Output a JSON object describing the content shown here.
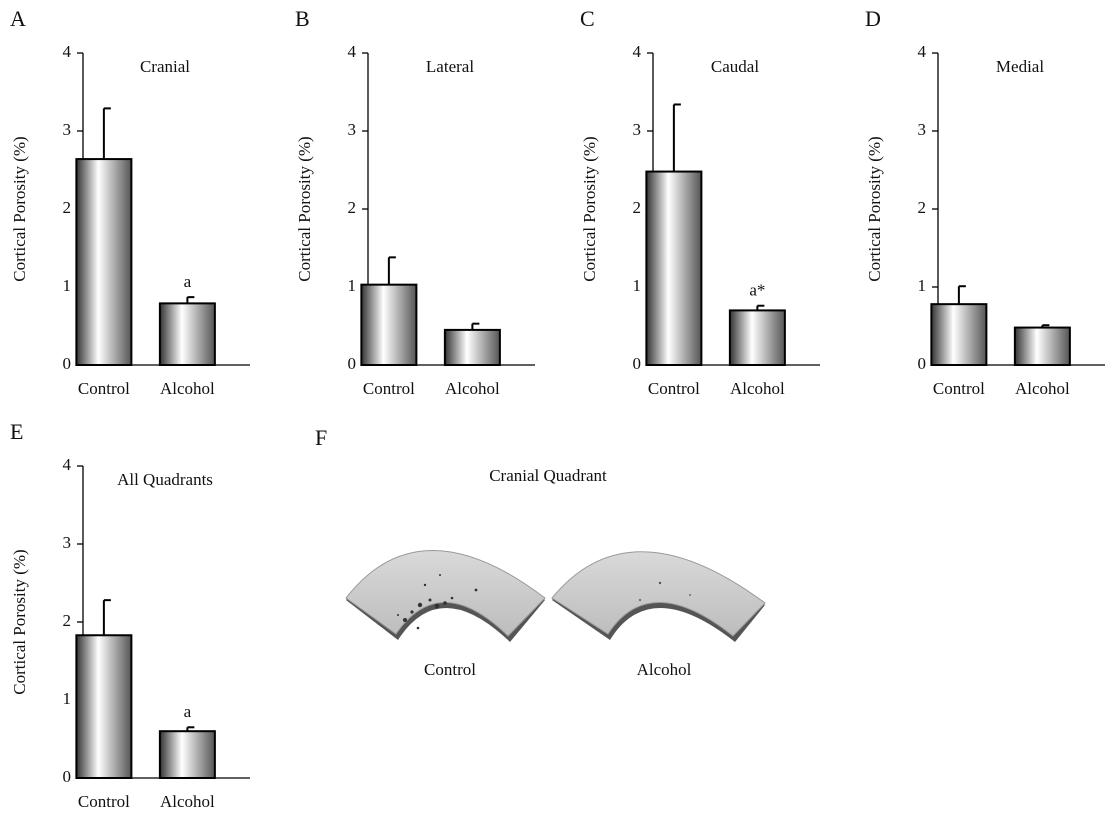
{
  "chart_data": [
    {
      "type": "bar",
      "panel": "A",
      "title": "Cranial",
      "ylabel": "Cortical Porosity (%)",
      "categories": [
        "Control",
        "Alcohol"
      ],
      "values": [
        2.64,
        0.79
      ],
      "errors": [
        0.65,
        0.08
      ],
      "significance": [
        null,
        "a"
      ],
      "ylim": [
        0,
        4
      ],
      "yticks": [
        0,
        1,
        2,
        3,
        4
      ]
    },
    {
      "type": "bar",
      "panel": "B",
      "title": "Lateral",
      "ylabel": "Cortical Porosity (%)",
      "categories": [
        "Control",
        "Alcohol"
      ],
      "values": [
        1.03,
        0.45
      ],
      "errors": [
        0.35,
        0.08
      ],
      "significance": [
        null,
        null
      ],
      "ylim": [
        0,
        4
      ],
      "yticks": [
        0,
        1,
        2,
        3,
        4
      ]
    },
    {
      "type": "bar",
      "panel": "C",
      "title": "Caudal",
      "ylabel": "Cortical Porosity (%)",
      "categories": [
        "Control",
        "Alcohol"
      ],
      "values": [
        2.48,
        0.7
      ],
      "errors": [
        0.86,
        0.06
      ],
      "significance": [
        null,
        "a*"
      ],
      "ylim": [
        0,
        4
      ],
      "yticks": [
        0,
        1,
        2,
        3,
        4
      ]
    },
    {
      "type": "bar",
      "panel": "D",
      "title": "Medial",
      "ylabel": "Cortical Porosity (%)",
      "categories": [
        "Control",
        "Alcohol"
      ],
      "values": [
        0.78,
        0.48
      ],
      "errors": [
        0.23,
        0.03
      ],
      "significance": [
        null,
        null
      ],
      "ylim": [
        0,
        4
      ],
      "yticks": [
        0,
        1,
        2,
        3,
        4
      ]
    },
    {
      "type": "bar",
      "panel": "E",
      "title": "All Quadrants",
      "ylabel": "Cortical Porosity (%)",
      "categories": [
        "Control",
        "Alcohol"
      ],
      "values": [
        1.83,
        0.6
      ],
      "errors": [
        0.45,
        0.05
      ],
      "significance": [
        null,
        "a"
      ],
      "ylim": [
        0,
        4
      ],
      "yticks": [
        0,
        1,
        2,
        3,
        4
      ]
    }
  ],
  "image_panel": {
    "panel": "F",
    "title": "Cranial Quadrant",
    "labels": [
      "Control",
      "Alcohol"
    ]
  }
}
